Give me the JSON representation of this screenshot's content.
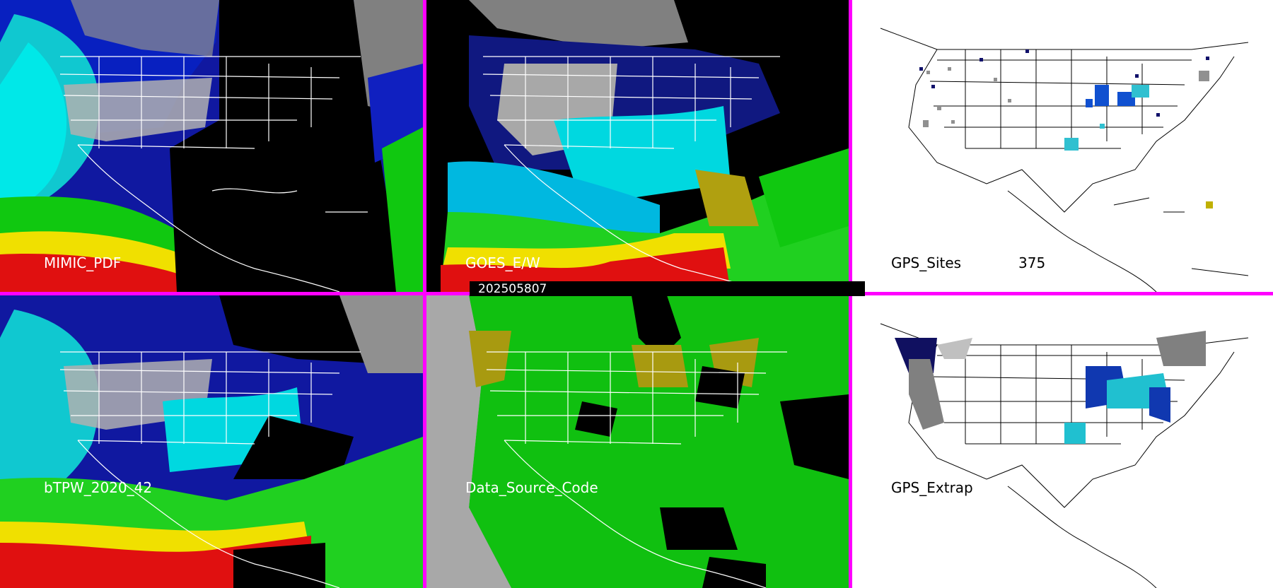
{
  "colors": {
    "separator": "#ff00ff",
    "label_dark_panel": "#ffffff",
    "label_light_panel": "#000000",
    "ocean_cyan": "#00e5e5",
    "land_gray": "#a0a0a0",
    "ds_green": "#00c800",
    "ds_olive": "#a89a10",
    "ds_gray": "#a8a8a8"
  },
  "panels": [
    {
      "id": "mimic-pdf",
      "label": "MIMIC_PDF"
    },
    {
      "id": "goes-ew",
      "label": "GOES_E/W"
    },
    {
      "id": "gps-sites",
      "label": "GPS_Sites",
      "count": "375"
    },
    {
      "id": "btpw",
      "label": "bTPW_2020_42"
    },
    {
      "id": "data-source",
      "label": "Data_Source_Code"
    },
    {
      "id": "gps-extrap",
      "label": "GPS_Extrap"
    }
  ],
  "timestamp": "202505807"
}
